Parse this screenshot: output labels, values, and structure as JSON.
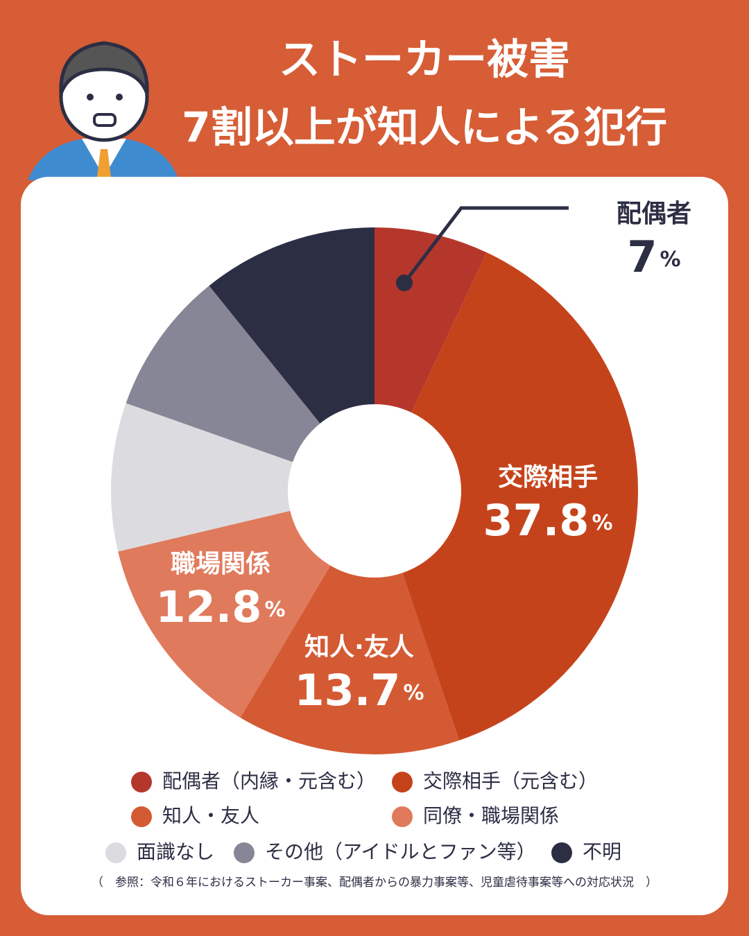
{
  "chart_data": {
    "type": "donut",
    "title": [
      "ストーカー被害",
      "7割以上が知人による犯行"
    ],
    "categories": [
      "配偶者（内縁・元含む）",
      "交際相手（元含む）",
      "知人・友人",
      "同僚・職場関係",
      "面識なし",
      "その他（アイドルとファン等）",
      "不明"
    ],
    "slice_labels": [
      "配偶者",
      "交際相手",
      "知人·友人",
      "職場関係",
      null,
      null,
      null
    ],
    "values": [
      7,
      37.8,
      13.7,
      12.8,
      9.1,
      8.8,
      10.8
    ],
    "unit": "%",
    "colors": [
      "#b5372b",
      "#c5431b",
      "#d45a33",
      "#e07a5c",
      "#dcdce0",
      "#868696",
      "#2c2e44"
    ],
    "note": "（　参照：令和６年におけるストーカー事案、配偶者からの暴力事案等、児童虐待事案等への対応状況　）"
  }
}
